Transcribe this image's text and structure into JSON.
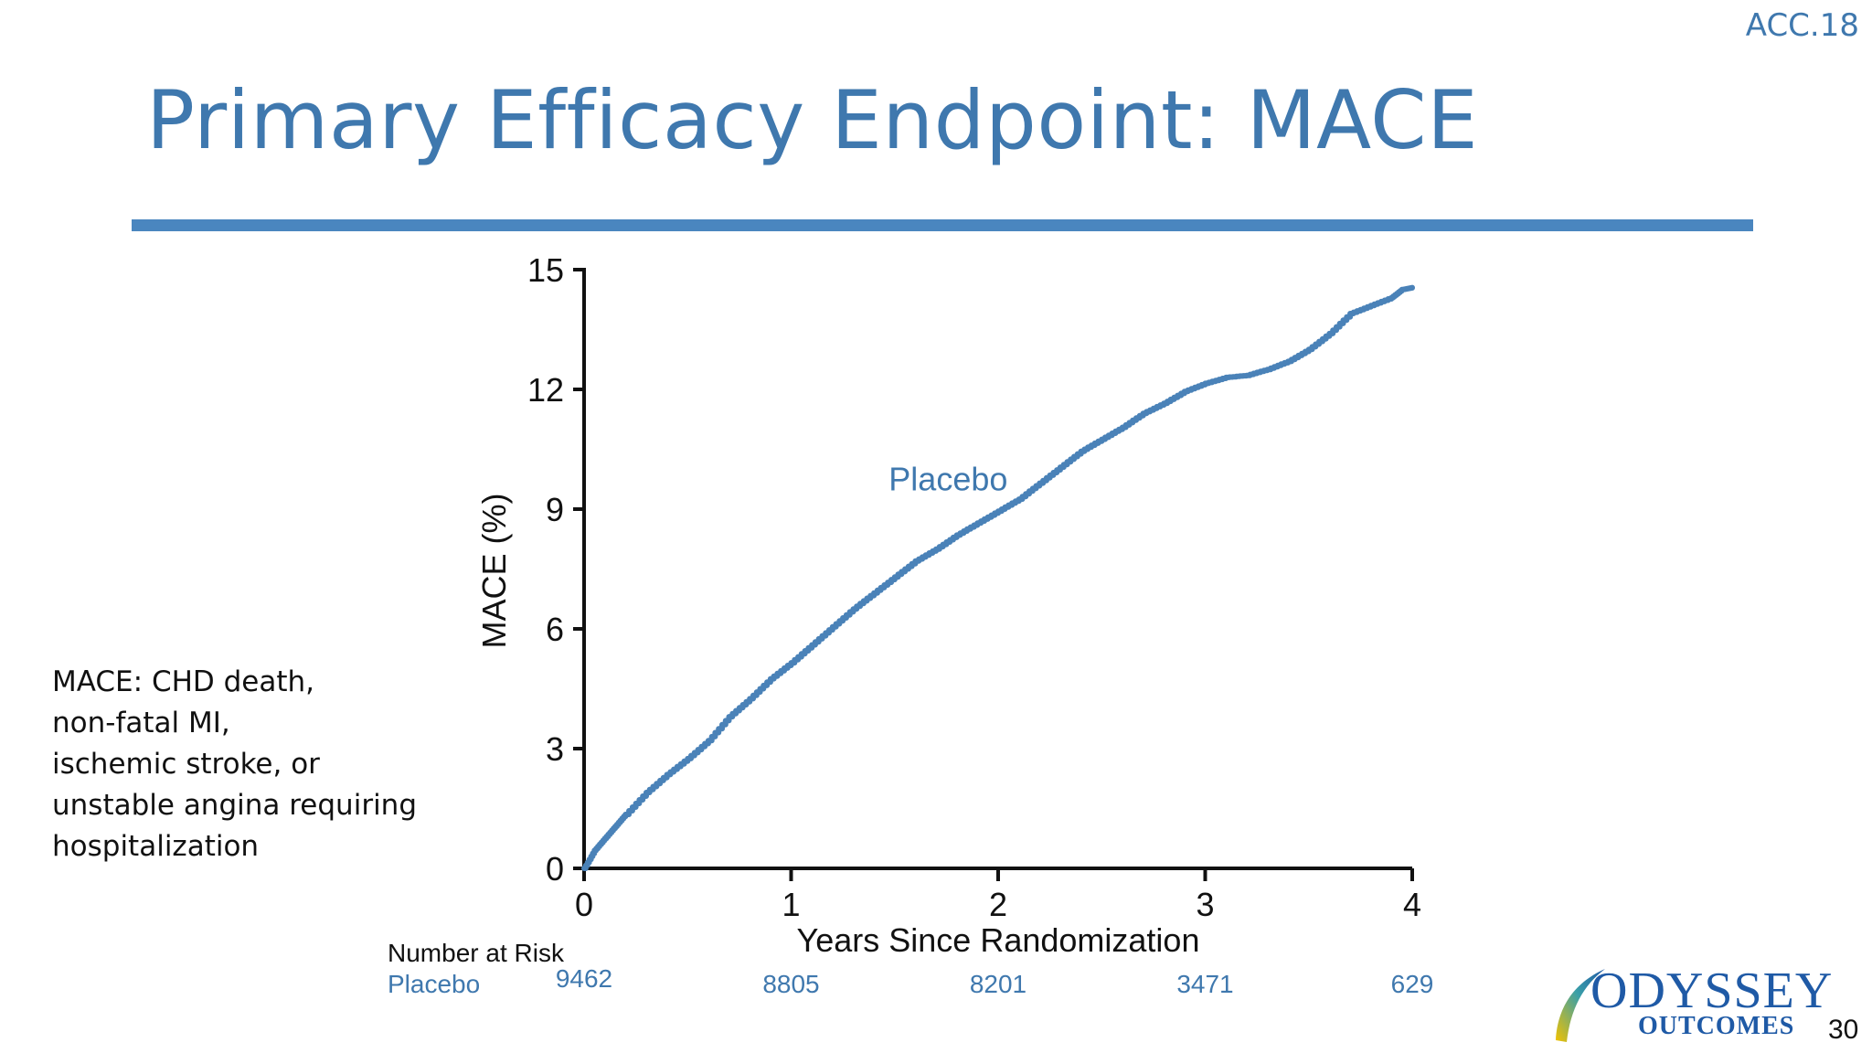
{
  "header": {
    "conference_tag": "ACC.18",
    "title": "Primary Efficacy Endpoint: MACE"
  },
  "footnote": {
    "lines": [
      "MACE: CHD death,",
      "non-fatal MI,",
      "ischemic stroke, or",
      "unstable angina requiring",
      "hospitalization"
    ]
  },
  "number_at_risk": {
    "label": "Number at Risk",
    "rows": [
      {
        "name": "Placebo",
        "values": [
          "9462",
          "8805",
          "8201",
          "3471",
          "629"
        ]
      }
    ]
  },
  "logo": {
    "line1": "ODYSSEY",
    "line2": "OUTCOMES"
  },
  "page_number": "30",
  "colors": {
    "accent": "#3f78ae",
    "curve": "#4a82b8",
    "axis": "#111111"
  },
  "chart_data": {
    "type": "line",
    "title": "",
    "xlabel": "Years Since Randomization",
    "ylabel": "MACE (%)",
    "xlim": [
      0,
      4
    ],
    "ylim": [
      0,
      15
    ],
    "x_ticks": [
      "0",
      "1",
      "2",
      "3",
      "4"
    ],
    "y_ticks": [
      "0",
      "3",
      "6",
      "9",
      "12",
      "15"
    ],
    "grid": false,
    "legend": "none",
    "series": [
      {
        "name": "Placebo",
        "x": [
          0,
          0.05,
          0.1,
          0.15,
          0.2,
          0.3,
          0.4,
          0.5,
          0.6,
          0.7,
          0.8,
          0.9,
          1.0,
          1.1,
          1.2,
          1.3,
          1.4,
          1.5,
          1.6,
          1.7,
          1.8,
          1.9,
          2.0,
          2.1,
          2.2,
          2.3,
          2.4,
          2.5,
          2.6,
          2.7,
          2.8,
          2.9,
          3.0,
          3.1,
          3.2,
          3.3,
          3.4,
          3.5,
          3.6,
          3.7,
          3.8,
          3.9,
          3.95,
          4.0
        ],
        "y": [
          0,
          0.45,
          0.75,
          1.05,
          1.35,
          1.9,
          2.35,
          2.75,
          3.2,
          3.8,
          4.25,
          4.75,
          5.15,
          5.6,
          6.05,
          6.5,
          6.9,
          7.3,
          7.7,
          8.0,
          8.35,
          8.65,
          8.95,
          9.25,
          9.65,
          10.05,
          10.45,
          10.75,
          11.05,
          11.4,
          11.65,
          11.95,
          12.15,
          12.3,
          12.35,
          12.5,
          12.7,
          13.0,
          13.4,
          13.9,
          14.1,
          14.3,
          14.5,
          14.55
        ]
      }
    ],
    "annotations": [
      {
        "text": "Placebo",
        "x": 1.9,
        "y": 9.75
      }
    ]
  }
}
